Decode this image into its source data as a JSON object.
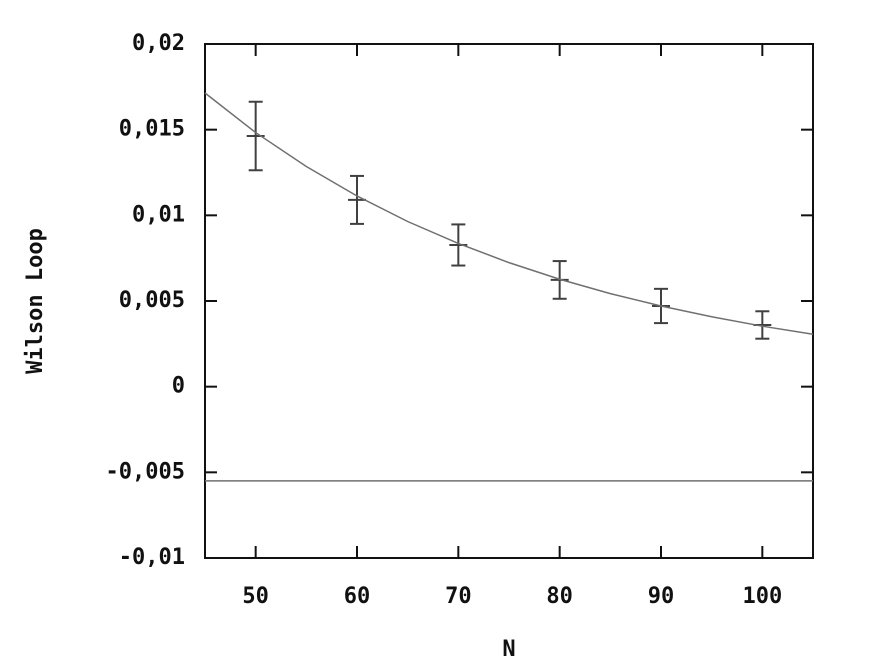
{
  "chart_data": {
    "type": "scatter",
    "xlabel": "N",
    "ylabel": "Wilson Loop",
    "xlim": [
      45,
      105
    ],
    "ylim": [
      -0.01,
      0.02
    ],
    "xticks": [
      50,
      60,
      70,
      80,
      90,
      100
    ],
    "yticks": [
      {
        "value": -0.01,
        "label": "-0,01"
      },
      {
        "value": -0.005,
        "label": "-0,005"
      },
      0,
      {
        "value": 0.005,
        "label": "0,005"
      },
      {
        "value": 0.01,
        "label": "0,01"
      },
      {
        "value": 0.015,
        "label": "0,015"
      },
      {
        "value": 0.02,
        "label": "0,02"
      }
    ],
    "series": [
      {
        "type": "errorbar",
        "color": "#404040",
        "x": [
          50,
          60,
          70,
          80,
          90,
          100
        ],
        "values": [
          0.01463,
          0.0109,
          0.00827,
          0.00623,
          0.00471,
          0.0036
        ],
        "errors": [
          0.002,
          0.0014,
          0.0012,
          0.0011,
          0.001,
          0.0008
        ]
      },
      {
        "type": "line",
        "color": "#707070",
        "x": [
          45,
          50,
          55,
          60,
          65,
          70,
          75,
          80,
          85,
          90,
          95,
          100,
          105
        ],
        "values": [
          0.01714,
          0.01483,
          0.01285,
          0.01113,
          0.00964,
          0.00836,
          0.00724,
          0.00627,
          0.00543,
          0.00471,
          0.00408,
          0.00353,
          0.00306
        ]
      },
      {
        "type": "line",
        "color": "#707070",
        "x": [
          45,
          105
        ],
        "values": [
          -0.0055,
          -0.0055
        ]
      }
    ]
  }
}
